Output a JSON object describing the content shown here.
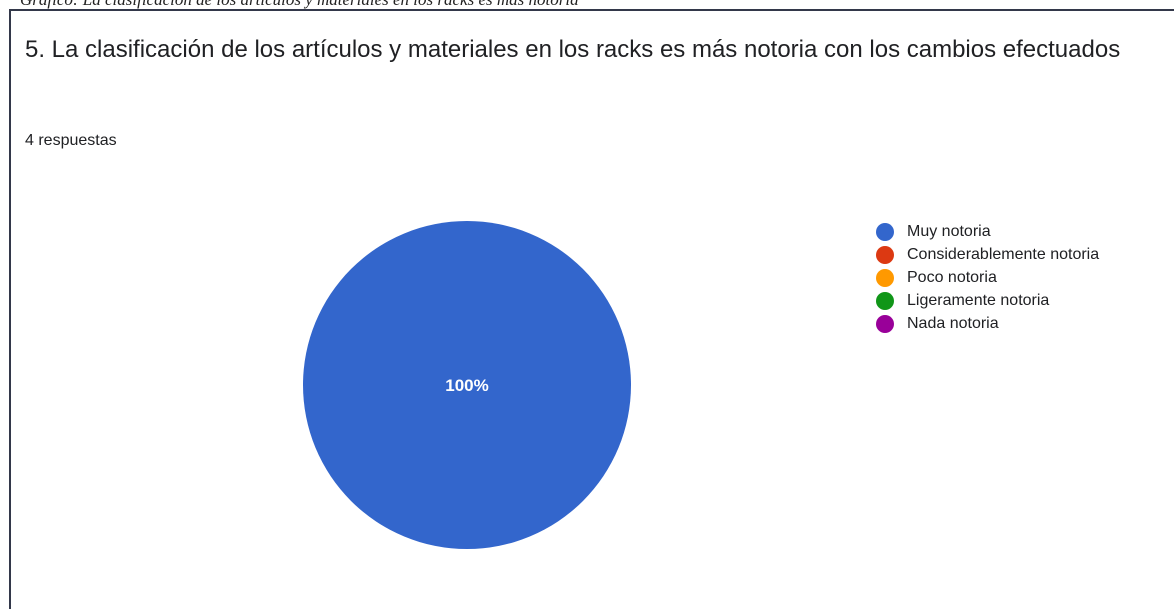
{
  "header_fragment": "Gráfico: La clasificación de los artículos y materiales en los racks es más notoria",
  "question": {
    "title": "5. La clasificación de los artículos y materiales en los racks es más notoria con los cambios efectuados",
    "responses": "4 respuestas"
  },
  "chart_data": {
    "type": "pie",
    "categories": [
      "Muy notoria",
      "Considerablemente notoria",
      "Poco notoria",
      "Ligeramente notoria",
      "Nada notoria"
    ],
    "values": [
      100,
      0,
      0,
      0,
      0
    ],
    "colors": [
      "#3366cc",
      "#dc3912",
      "#ff9900",
      "#109618",
      "#990099"
    ],
    "slice_labels": [
      "100%",
      "",
      "",
      "",
      ""
    ],
    "legend_position": "right"
  }
}
